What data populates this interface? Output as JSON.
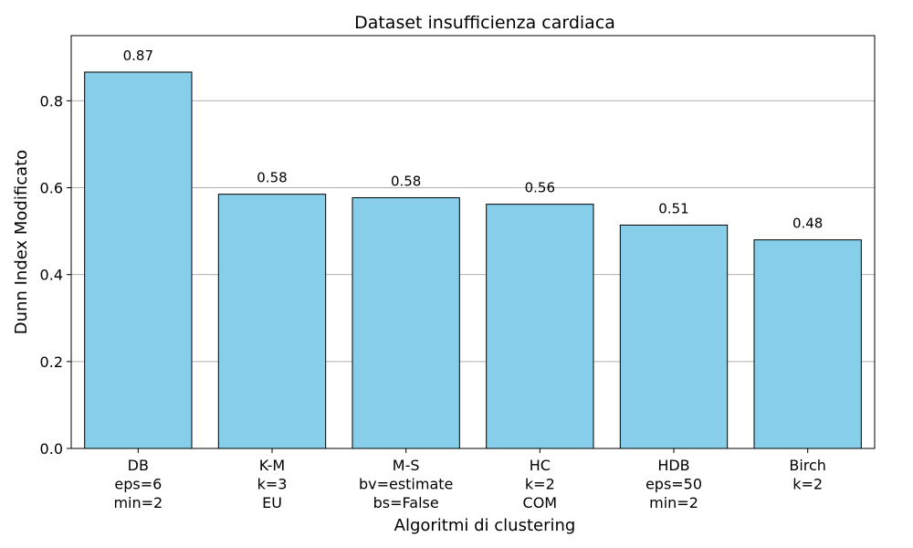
{
  "chart_data": {
    "type": "bar",
    "title": "Dataset insufficienza cardiaca",
    "xlabel": "Algoritmi di clustering",
    "ylabel": "Dunn Index Modificato",
    "ylim": [
      0,
      0.95
    ],
    "yticks": [
      0.0,
      0.2,
      0.4,
      0.6,
      0.8
    ],
    "ytick_labels": [
      "0.0",
      "0.2",
      "0.4",
      "0.6",
      "0.8"
    ],
    "grid": "y",
    "bar_color": "#87ceeb",
    "edge_color": "#000000",
    "categories": [
      [
        "DB",
        "eps=6",
        "min=2"
      ],
      [
        "K-M",
        "k=3",
        "EU"
      ],
      [
        "M-S",
        "bv=estimate",
        "bs=False"
      ],
      [
        "HC",
        "k=2",
        "COM"
      ],
      [
        "HDB",
        "eps=50",
        "min=2"
      ],
      [
        "Birch",
        "k=2"
      ]
    ],
    "values": [
      0.866,
      0.585,
      0.577,
      0.562,
      0.514,
      0.48
    ],
    "value_labels": [
      "0.87",
      "0.58",
      "0.58",
      "0.56",
      "0.51",
      "0.48"
    ]
  }
}
